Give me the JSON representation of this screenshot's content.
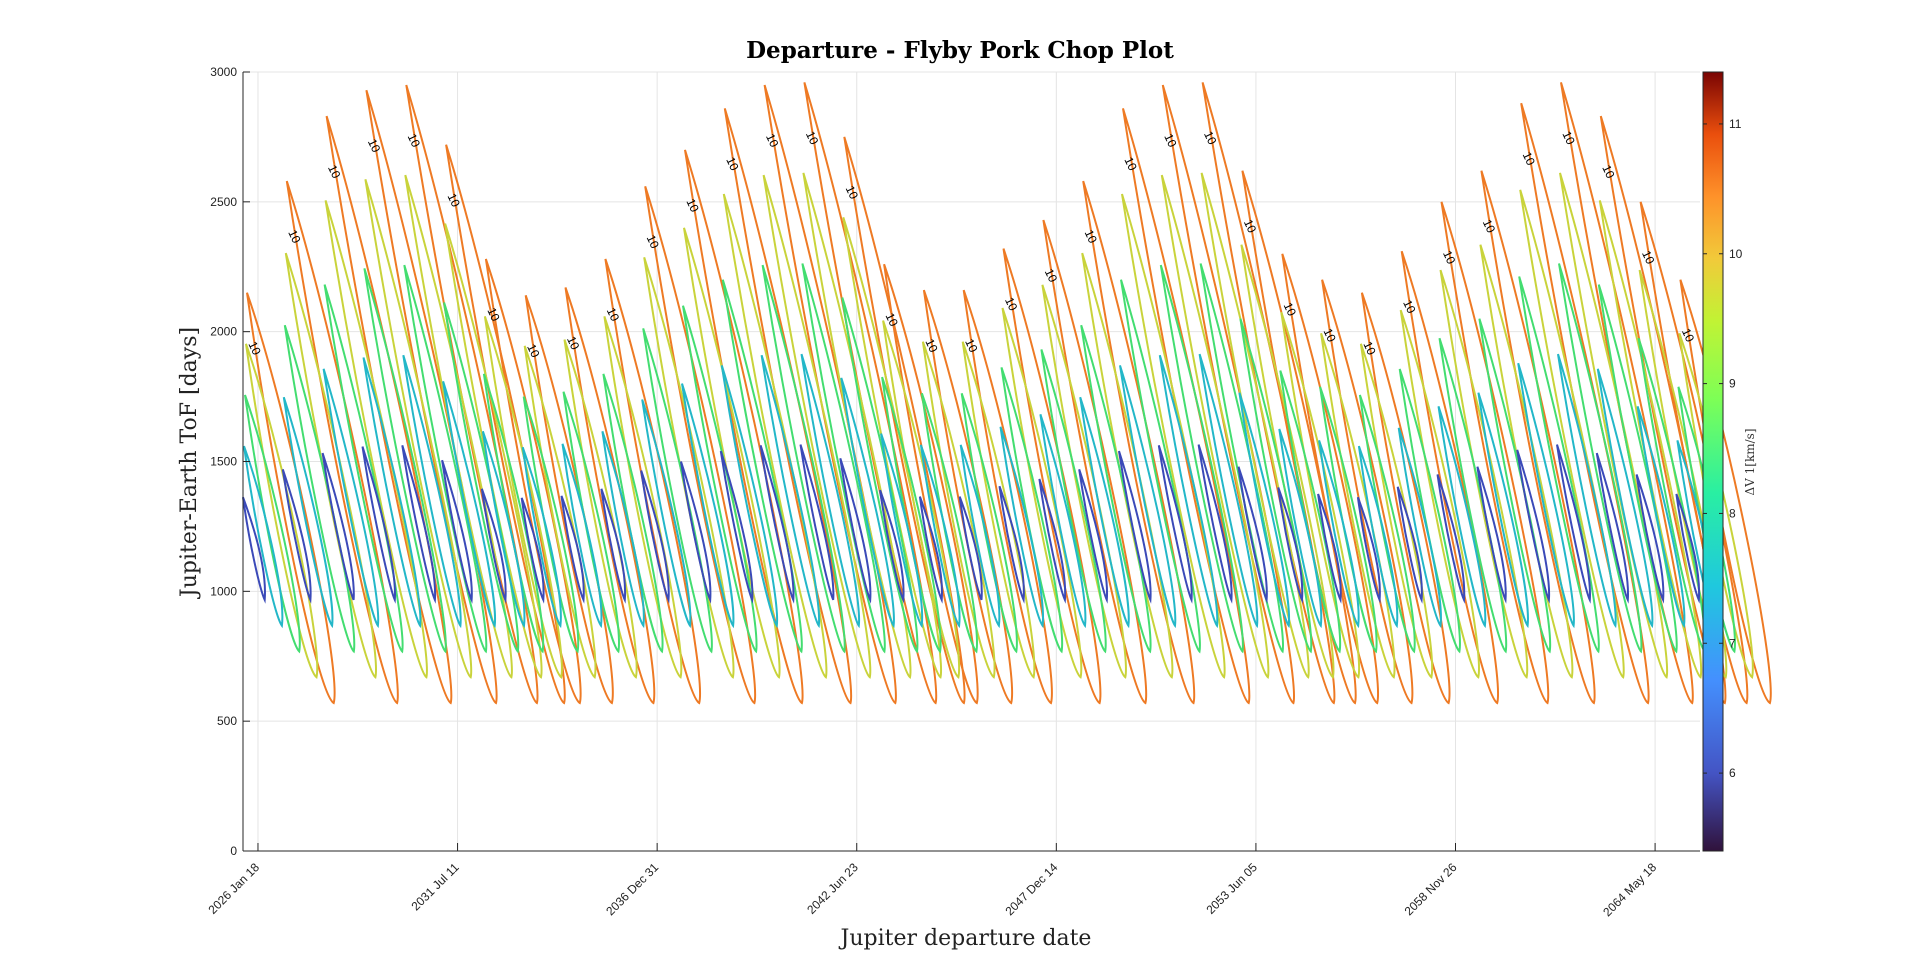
{
  "chart_data": {
    "type": "contour",
    "title": "Departure - Flyby Pork Chop Plot",
    "xlabel": "Jupiter departure date",
    "ylabel": "Jupiter-Earth ToF [days]",
    "x_tick_labels": [
      "2026 Jan 18",
      "2031 Jul 11",
      "2036 Dec 31",
      "2042 Jun 23",
      "2047 Dec 14",
      "2053 Jun 05",
      "2058 Nov 26",
      "2064 May 18"
    ],
    "x_tick_days": [
      0,
      2000,
      4000,
      6000,
      8000,
      10000,
      12000,
      14000
    ],
    "xlim_days": [
      -150,
      14450
    ],
    "ylim": [
      0,
      3000
    ],
    "y_ticks": [
      0,
      500,
      1000,
      1500,
      2000,
      2500,
      3000
    ],
    "grid": true,
    "colorbar": {
      "label": "ΔV 1[km/s]",
      "range": [
        5.4,
        11.4
      ],
      "ticks": [
        6,
        7,
        8,
        9,
        10,
        11
      ],
      "colormap": "turbo"
    },
    "contour_levels": [
      6,
      7,
      8,
      9,
      10
    ],
    "contour_label": "10",
    "level_colors": {
      "6": "#3b4ab8",
      "7": "#23b7c8",
      "8": "#43dd70",
      "9": "#c9d33b",
      "10": "#ee7a24"
    },
    "synodic_period_days": 399,
    "family_count": 37,
    "first_family_offset_days": -110,
    "family_tops": [
      2150,
      2580,
      2830,
      2930,
      2950,
      2720,
      2280,
      2140,
      2170,
      2280,
      2560,
      2700,
      2860,
      2950,
      2960,
      2750,
      2260,
      2160,
      2160,
      2320,
      2430,
      2580,
      2860,
      2950,
      2960,
      2620,
      2300,
      2200,
      2150,
      2310,
      2500,
      2620,
      2880,
      2960,
      2830,
      2500,
      2200
    ],
    "family_bottom": 570,
    "min_dv_tof": 1100
  }
}
